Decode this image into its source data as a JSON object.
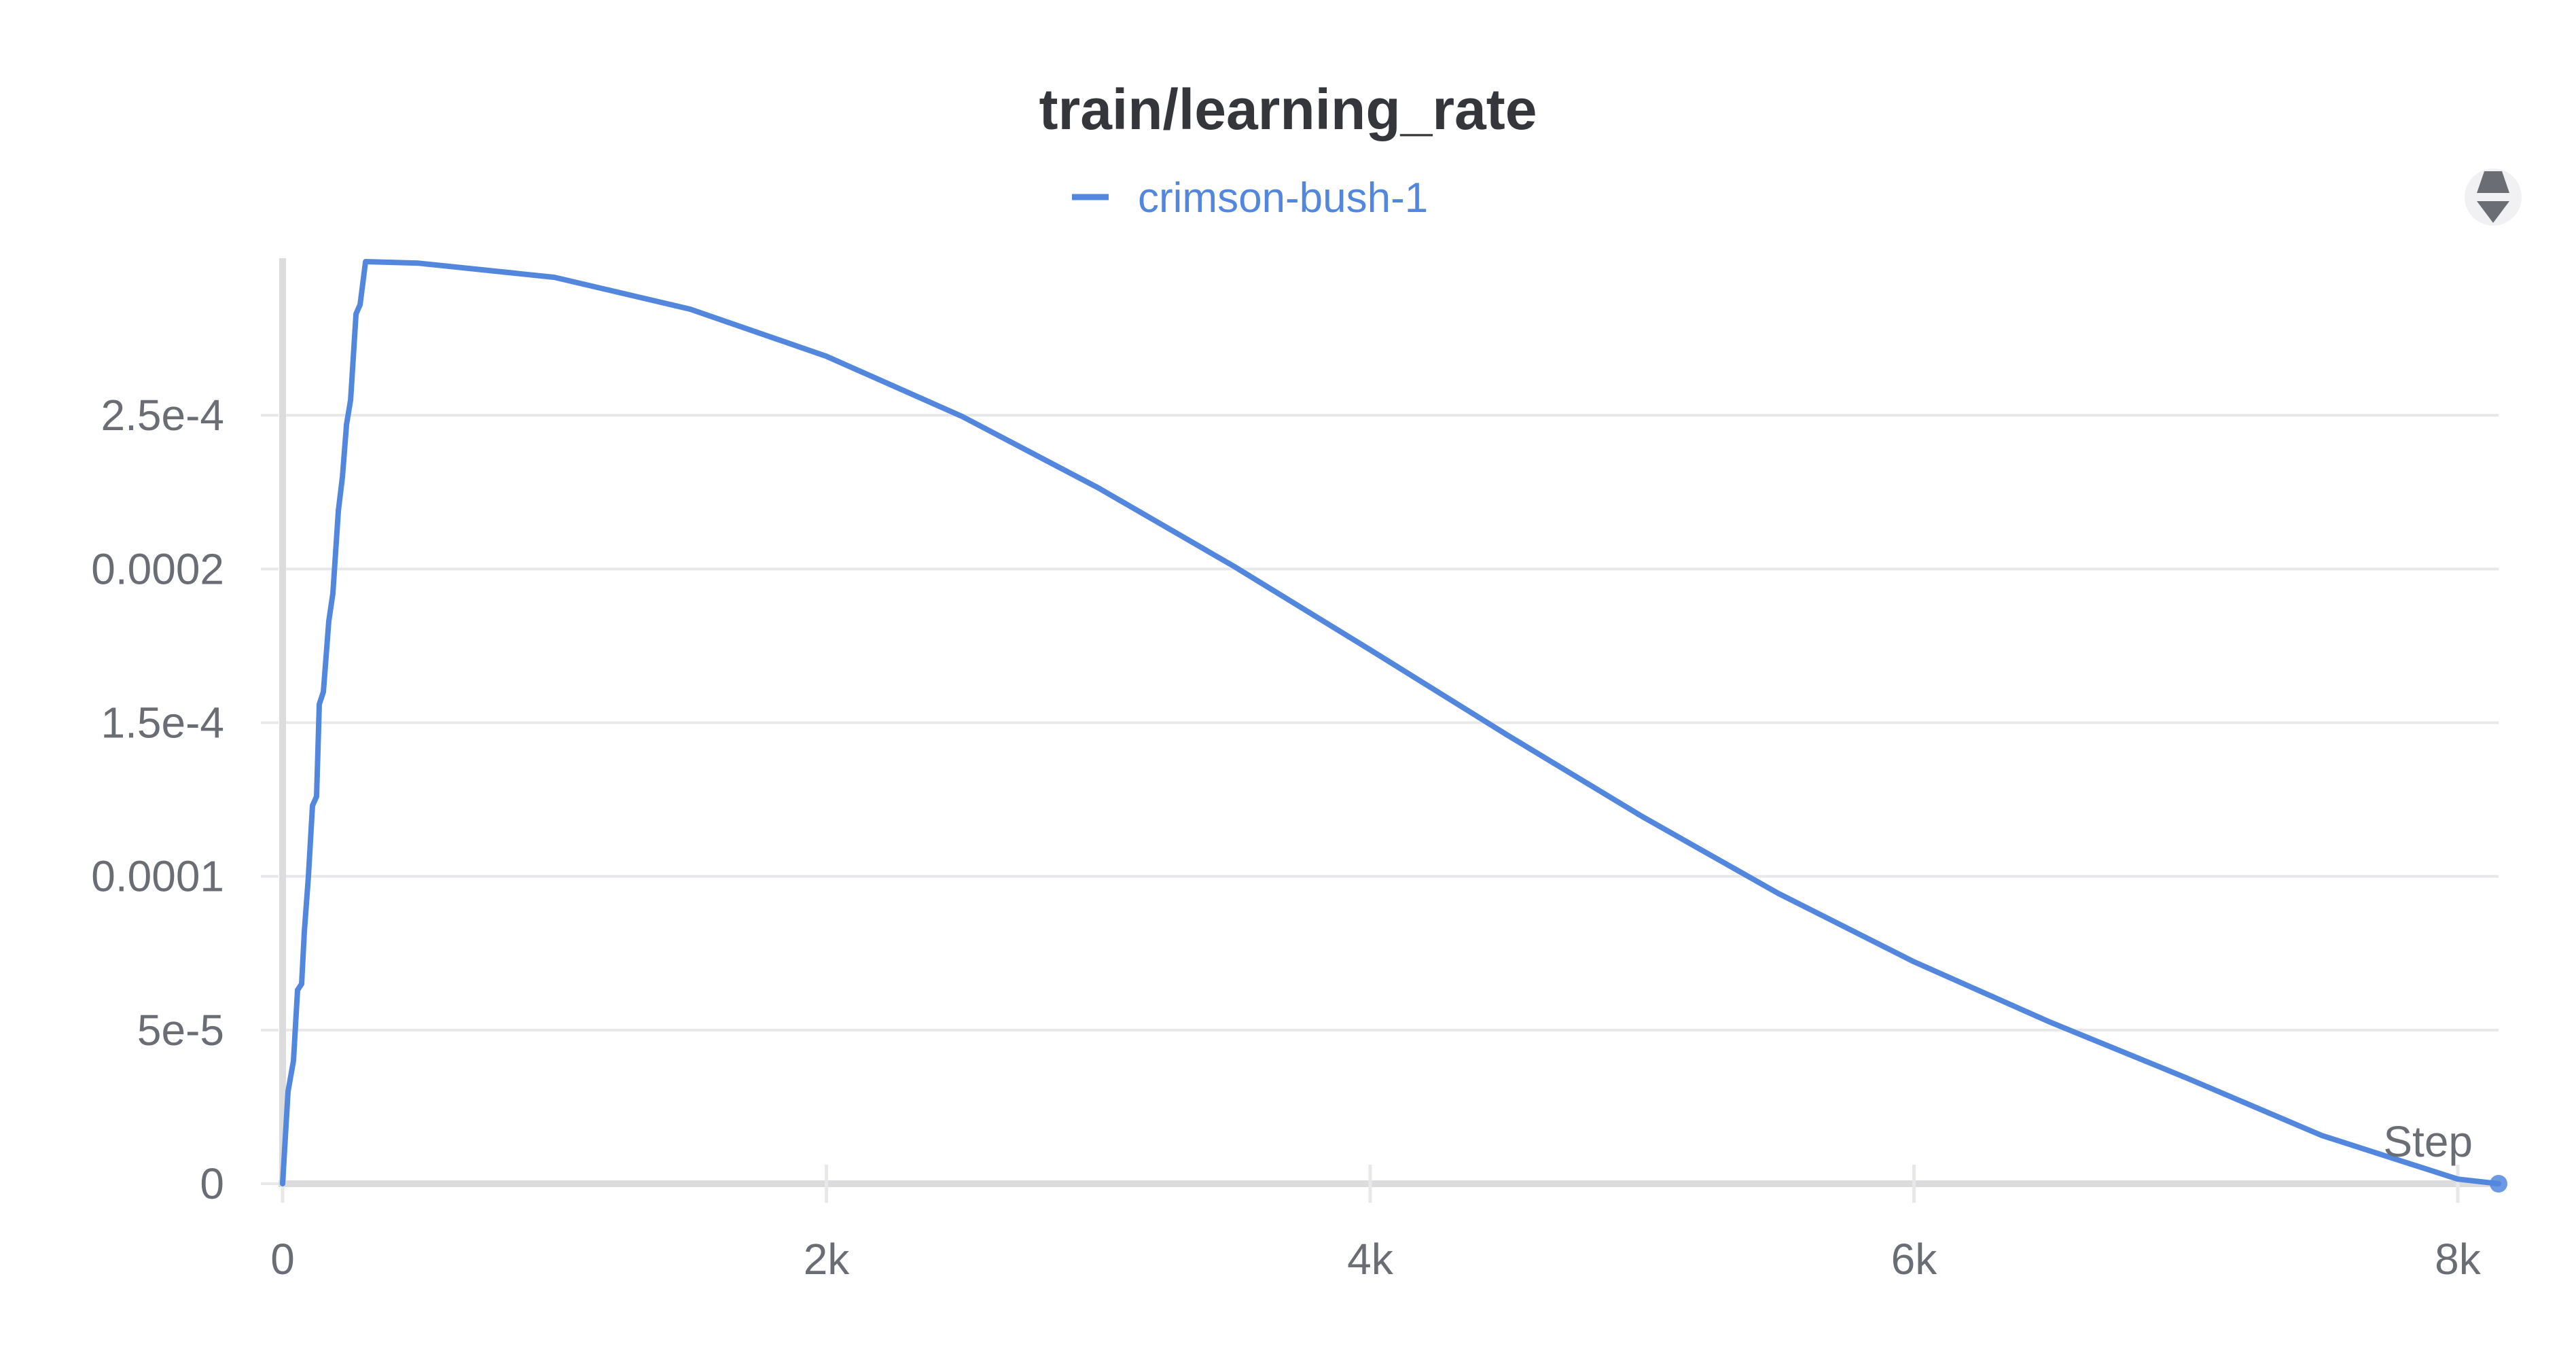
{
  "chart_data": {
    "type": "line",
    "title": "train/learning_rate",
    "xlabel": "Step",
    "ylabel": "",
    "legend": {
      "position": "top-center"
    },
    "grid": true,
    "xlim": [
      0,
      8150
    ],
    "ylim": [
      0,
      0.0003
    ],
    "x_ticks": [
      {
        "value": 0,
        "label": "0"
      },
      {
        "value": 2000,
        "label": "2k"
      },
      {
        "value": 4000,
        "label": "4k"
      },
      {
        "value": 6000,
        "label": "6k"
      },
      {
        "value": 8000,
        "label": "8k"
      }
    ],
    "y_ticks": [
      {
        "value": 0,
        "label": "0"
      },
      {
        "value": 5e-05,
        "label": "5e-5"
      },
      {
        "value": 0.0001,
        "label": "0.0001"
      },
      {
        "value": 0.00015,
        "label": "1.5e-4"
      },
      {
        "value": 0.0002,
        "label": "0.0002"
      },
      {
        "value": 0.00025,
        "label": "2.5e-4"
      }
    ],
    "series": [
      {
        "name": "crimson-bush-1",
        "color": "#5387dd",
        "points": [
          [
            0,
            0
          ],
          [
            20,
            3e-05
          ],
          [
            40,
            4e-05
          ],
          [
            55,
            6.3e-05
          ],
          [
            70,
            6.5e-05
          ],
          [
            80,
            8.2e-05
          ],
          [
            95,
            0.0001
          ],
          [
            110,
            0.000123
          ],
          [
            125,
            0.000126
          ],
          [
            135,
            0.000156
          ],
          [
            150,
            0.00016
          ],
          [
            170,
            0.000183
          ],
          [
            185,
            0.000192
          ],
          [
            205,
            0.000219
          ],
          [
            220,
            0.00023
          ],
          [
            235,
            0.000247
          ],
          [
            250,
            0.000255
          ],
          [
            270,
            0.000283
          ],
          [
            285,
            0.000286
          ],
          [
            305,
            0.0003
          ],
          [
            500,
            0.0002995
          ],
          [
            1000,
            0.0002949
          ],
          [
            1500,
            0.0002845
          ],
          [
            2000,
            0.0002692
          ],
          [
            2500,
            0.0002496
          ],
          [
            3000,
            0.0002264
          ],
          [
            3500,
            0.0002008
          ],
          [
            4000,
            0.0001737
          ],
          [
            4500,
            0.0001462
          ],
          [
            5000,
            0.0001195
          ],
          [
            5500,
            9.45e-05
          ],
          [
            6000,
            7.22e-05
          ],
          [
            6500,
            5.26e-05
          ],
          [
            7000,
            3.45e-05
          ],
          [
            7500,
            1.57e-05
          ],
          [
            8000,
            1.5e-06
          ],
          [
            8150,
            0
          ]
        ]
      }
    ],
    "end_marker": [
      8150,
      0
    ]
  },
  "ui": {
    "icon_color": "#6b6d75",
    "grid_color": "#e8e8ea",
    "axis_color": "#dcdcde"
  }
}
